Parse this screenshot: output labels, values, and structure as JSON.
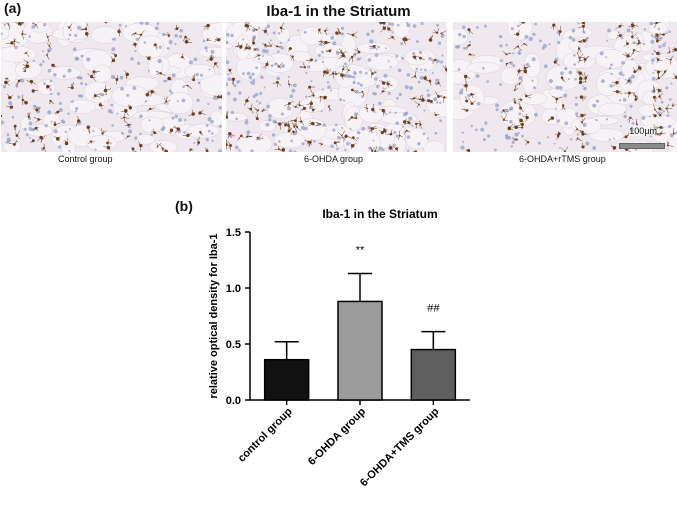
{
  "panel_a": {
    "label": "(a)",
    "title": "Iba-1 in the Striatum",
    "images": [
      {
        "caption": "Control group"
      },
      {
        "caption": "6-OHDA group"
      },
      {
        "caption": "6-OHDA+rTMS group",
        "scale_bar_label": "100μm"
      }
    ]
  },
  "panel_b": {
    "label": "(b)"
  },
  "colors": {
    "tissue_bg": "#efe9ef",
    "nucleus": "#9aa3c9",
    "cell_brown": "#6b4020",
    "scale_bar": "#8a8a8a"
  },
  "chart_data": {
    "type": "bar",
    "title": "Iba-1 in the Striatum",
    "xlabel": "",
    "ylabel": "relative optical density for Iba-1",
    "categories": [
      "control group",
      "6-OHDA group",
      "6-OHDA+TMS group"
    ],
    "values": [
      0.36,
      0.88,
      0.45
    ],
    "errors": [
      0.16,
      0.25,
      0.16
    ],
    "annotations": [
      "",
      "**",
      "##"
    ],
    "bar_colors": [
      "#111111",
      "#9b9b9b",
      "#5f5f5f"
    ],
    "ylim": [
      0,
      1.5
    ],
    "yticks": [
      "0.0",
      "0.5",
      "1.0",
      "1.5"
    ],
    "grid": false
  }
}
